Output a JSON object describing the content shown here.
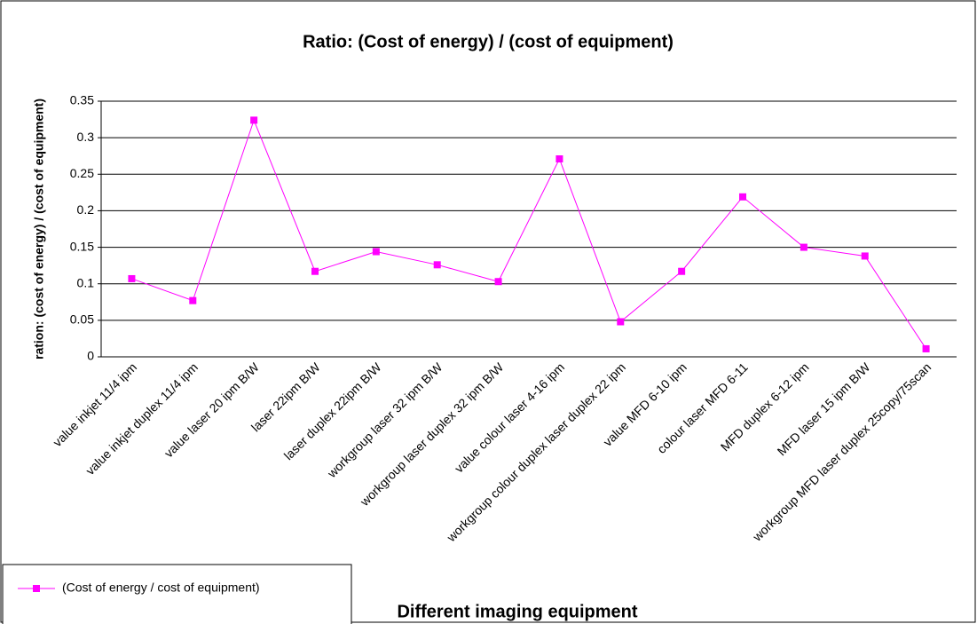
{
  "chart_data": {
    "type": "line",
    "title": "Ratio: (Cost of energy) / (cost of equipment)",
    "x_label": "Different imaging equipment",
    "y_label": "ration: (cost of energy) / (cost of equipment)",
    "categories": [
      "value inkjet 11/4 ipm",
      "value inkjet duplex 11/4 ipm",
      "value laser 20 ipm B/W",
      "laser 22ipm B/W",
      "laser duplex 22ipm B/W",
      "workgroup laser 32 ipm B/W",
      "workgroup laser duplex 32 ipm B/W",
      "value colour laser 4-16 ipm",
      "workgroup colour duplex laser duplex 22 ipm",
      "value MFD 6-10 ipm",
      "colour laser MFD 6-11",
      "MFD duplex 6-12 ipm",
      "MFD laser 15 ipm B/W",
      "workgroup  MFD  laser  duplex  25copy/75scan"
    ],
    "series": [
      {
        "name": "(Cost of energy / cost of equipment)",
        "color": "#ff00ff",
        "values": [
          0.107,
          0.077,
          0.324,
          0.117,
          0.144,
          0.126,
          0.103,
          0.271,
          0.048,
          0.117,
          0.219,
          0.15,
          0.138,
          0.011
        ]
      }
    ],
    "ylim": [
      0,
      0.35
    ],
    "yticks": [
      0,
      0.05,
      0.1,
      0.15,
      0.2,
      0.25,
      0.3,
      0.35
    ],
    "grid": true,
    "legend": "bottom-left"
  }
}
